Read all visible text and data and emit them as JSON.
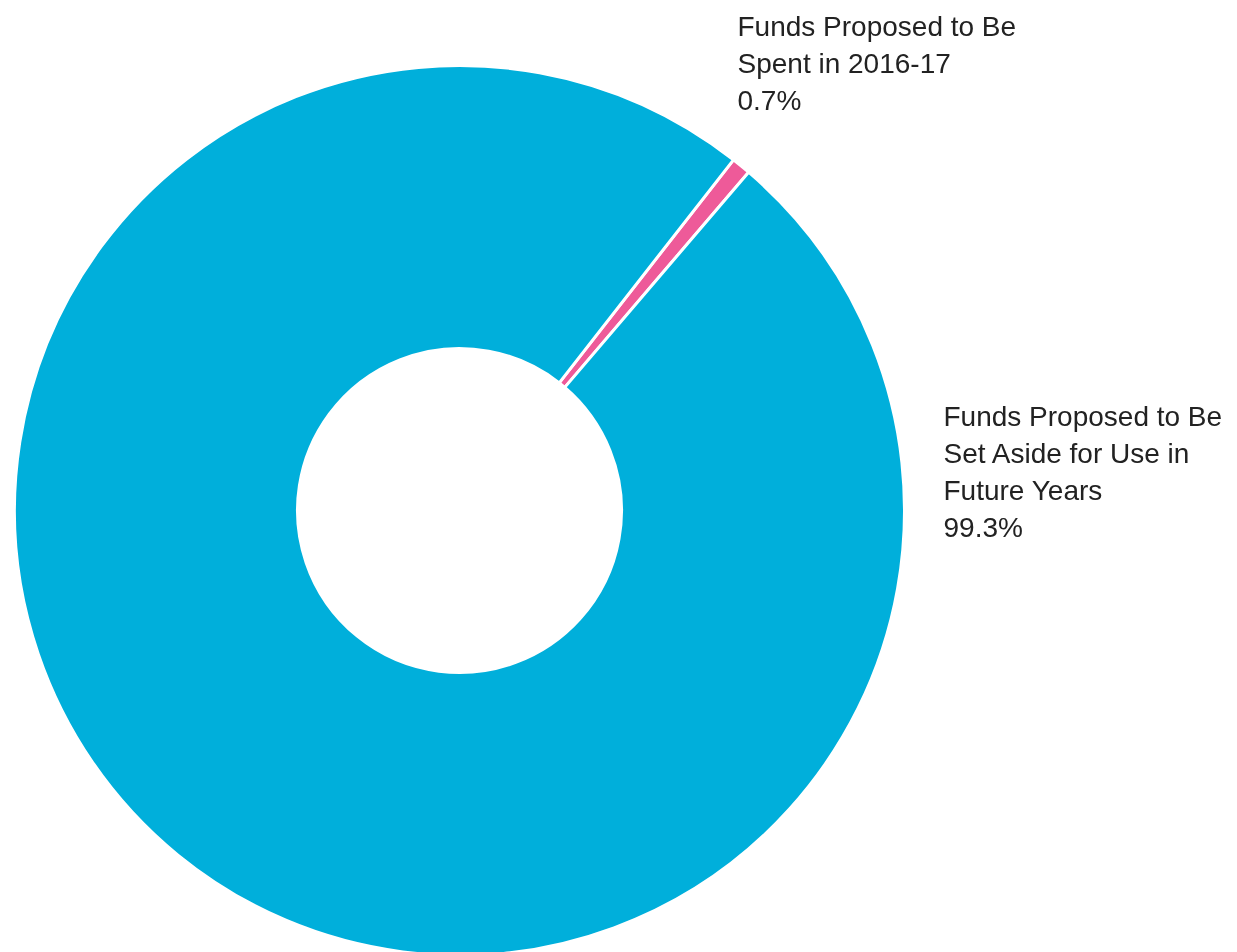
{
  "chart_data": {
    "type": "donut",
    "categories": [
      "Funds Proposed to Be\nSpent in 2016-17",
      "Funds Proposed to Be\nSet Aside for Use in\nFuture Years"
    ],
    "values": [
      0.7,
      99.3
    ],
    "colors": [
      "#ee5a99",
      "#00afdb"
    ],
    "value_labels": [
      "0.7%",
      "99.3%"
    ]
  }
}
